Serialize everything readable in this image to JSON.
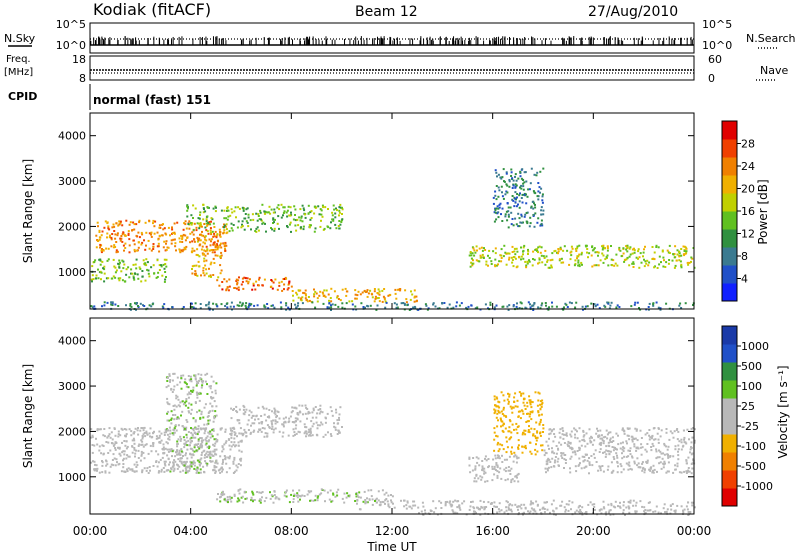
{
  "header": {
    "station": "Kodiak (fitACF)",
    "beam": "Beam 12",
    "date": "27/Aug/2010"
  },
  "top_panels": {
    "nsky_label": "N.Sky",
    "nsearch_label": "N.Search",
    "nsky_ticks": [
      "10^5",
      "10^0"
    ],
    "nsearch_ticks": [
      "10^5",
      "10^0"
    ],
    "freq_label_1": "Freq.",
    "freq_label_2": "[MHz]",
    "freq_ticks": [
      "18",
      "8"
    ],
    "nave_label": "Nave",
    "nave_ticks": [
      "60",
      "0"
    ],
    "cpid_label": "CPID",
    "cpid_value": "normal (fast) 151"
  },
  "x_axis": {
    "label": "Time UT",
    "ticks": [
      "00:00",
      "04:00",
      "08:00",
      "12:00",
      "16:00",
      "20:00",
      "00:00"
    ]
  },
  "colors": {
    "power_scale": [
      "#1020ff",
      "#2050c8",
      "#3a7a90",
      "#309040",
      "#60c020",
      "#c0d000",
      "#f0b000",
      "#f08000",
      "#f04000",
      "#e00000"
    ],
    "velocity_scale": [
      "#e00000",
      "#f04000",
      "#f08000",
      "#f0b000",
      "#b8b8b8",
      "#b8b8b8",
      "#60c020",
      "#309040",
      "#2050c8",
      "#1a3aa8"
    ]
  },
  "chart_data": [
    {
      "type": "heatmap",
      "name": "power",
      "xlabel": "Time UT",
      "ylabel": "Slant Range [km]",
      "ylim": [
        180,
        4500
      ],
      "yticks": [
        1000,
        2000,
        3000,
        4000
      ],
      "x_hours": [
        0,
        24
      ],
      "colorbar": {
        "label": "Power [dB]",
        "ticks": [
          "4",
          "8",
          "12",
          "16",
          "20",
          "24",
          "28"
        ],
        "range": [
          0,
          30
        ]
      },
      "regions": [
        {
          "t0": 0.2,
          "t1": 5.5,
          "r0": 1450,
          "r1": 2150,
          "v": 22
        },
        {
          "t0": 3.8,
          "t1": 10.0,
          "r0": 1900,
          "r1": 2500,
          "v": 13
        },
        {
          "t0": 4.0,
          "t1": 5.2,
          "r0": 900,
          "r1": 1900,
          "v": 20
        },
        {
          "t0": 5.0,
          "t1": 8.0,
          "r0": 600,
          "r1": 900,
          "v": 24
        },
        {
          "t0": 8.0,
          "t1": 13.0,
          "r0": 350,
          "r1": 650,
          "v": 20
        },
        {
          "t0": 0.0,
          "t1": 24.0,
          "r0": 180,
          "r1": 350,
          "v": 8
        },
        {
          "t0": 15.0,
          "t1": 24.0,
          "r0": 1100,
          "r1": 1600,
          "v": 16
        },
        {
          "t0": 16.0,
          "t1": 18.0,
          "r0": 2000,
          "r1": 3300,
          "v": 8
        },
        {
          "t0": 0.0,
          "t1": 3.0,
          "r0": 800,
          "r1": 1300,
          "v": 14
        }
      ]
    },
    {
      "type": "heatmap",
      "name": "velocity",
      "xlabel": "Time UT",
      "ylabel": "Slant Range [km]",
      "ylim": [
        180,
        4500
      ],
      "yticks": [
        1000,
        2000,
        3000,
        4000
      ],
      "x_hours": [
        0,
        24
      ],
      "colorbar": {
        "label": "Velocity [m s⁻¹]",
        "ticks": [
          "-1000",
          "-500",
          "-100",
          "-25",
          "25",
          "100",
          "500",
          "1000"
        ],
        "range": [
          -1200,
          1200
        ]
      },
      "regions": [
        {
          "t0": 0.0,
          "t1": 6.0,
          "r0": 1100,
          "r1": 2100,
          "v": 0
        },
        {
          "t0": 5.5,
          "t1": 10.0,
          "r0": 1900,
          "r1": 2600,
          "v": 0
        },
        {
          "t0": 3.0,
          "t1": 5.0,
          "r0": 1100,
          "r1": 3300,
          "v": 200
        },
        {
          "t0": 5.0,
          "t1": 12.0,
          "r0": 450,
          "r1": 750,
          "v": 200
        },
        {
          "t0": 10.5,
          "t1": 13.0,
          "r0": 300,
          "r1": 500,
          "v": 120
        },
        {
          "t0": 13.0,
          "t1": 24.0,
          "r0": 180,
          "r1": 500,
          "v": -80
        },
        {
          "t0": 15.0,
          "t1": 17.0,
          "r0": 900,
          "r1": 1500,
          "v": -150
        },
        {
          "t0": 16.0,
          "t1": 18.0,
          "r0": 1500,
          "r1": 2900,
          "v": -350
        },
        {
          "t0": 18.0,
          "t1": 24.0,
          "r0": 1100,
          "r1": 2100,
          "v": 0
        }
      ]
    }
  ]
}
